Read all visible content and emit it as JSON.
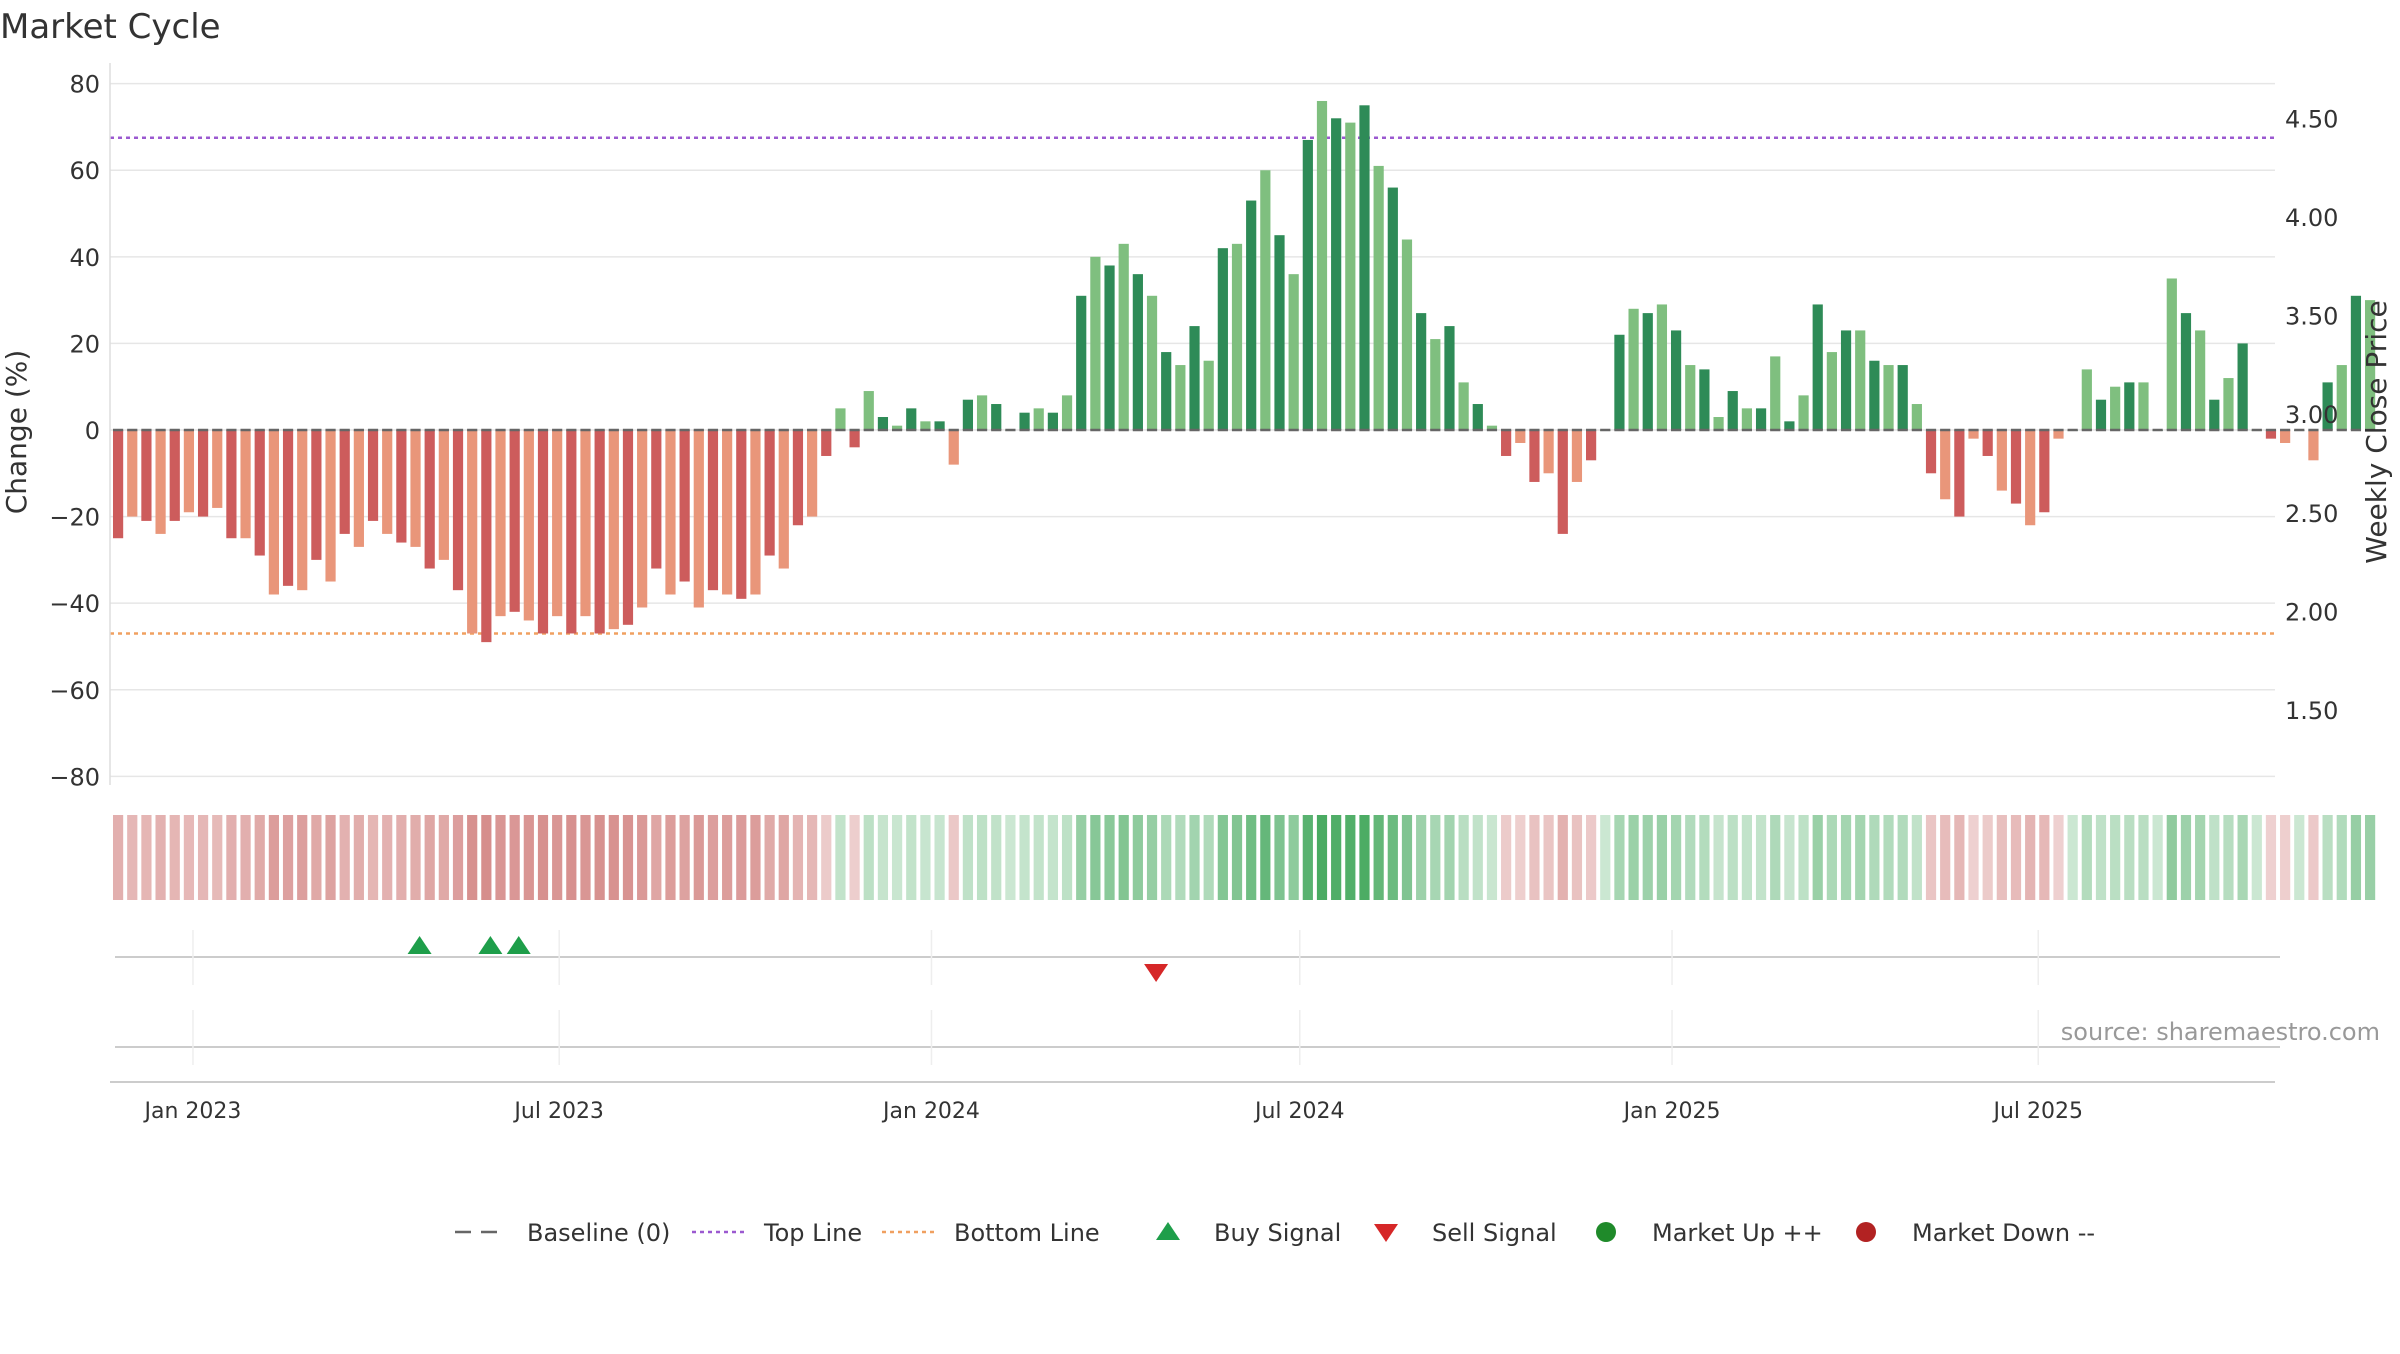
{
  "chart_data": {
    "type": "bar",
    "title": "Market Cycle",
    "ylabel": "Change (%)",
    "y2label": "Weekly Close Price",
    "ylim": [
      -82,
      82
    ],
    "y2lim": [
      1.12,
      4.72
    ],
    "yticks": [
      80,
      60,
      40,
      20,
      0,
      -20,
      -40,
      -60,
      -80
    ],
    "ytick_labels": [
      "80",
      "60",
      "40",
      "20",
      "0",
      "−20",
      "−40",
      "−60",
      "−80"
    ],
    "y2ticks": [
      4.5,
      4.0,
      3.5,
      3.0,
      2.5,
      2.0,
      1.5
    ],
    "y2tick_labels": [
      "4.50",
      "4.00",
      "3.50",
      "3.00",
      "2.50",
      "2.00",
      "1.50"
    ],
    "xticks": [
      {
        "label": "Jan 2023",
        "date": "2023-01-01"
      },
      {
        "label": "Jul 2023",
        "date": "2023-07-01"
      },
      {
        "label": "Jan 2024",
        "date": "2024-01-01"
      },
      {
        "label": "Jul 2024",
        "date": "2024-07-01"
      },
      {
        "label": "Jan 2025",
        "date": "2025-01-01"
      },
      {
        "label": "Jul 2025",
        "date": "2025-07-01"
      }
    ],
    "xrange": [
      "2022-11-21",
      "2025-10-26"
    ],
    "first_week": "2022-11-25",
    "top_line": 67.5,
    "bottom_line": -47,
    "baseline": 0,
    "values": [
      -25,
      -20,
      -21,
      -24,
      -21,
      -19,
      -20,
      -18,
      -25,
      -25,
      -29,
      -38,
      -36,
      -37,
      -30,
      -35,
      -24,
      -27,
      -21,
      -24,
      -26,
      -27,
      -32,
      -30,
      -37,
      -47,
      -49,
      -43,
      -42,
      -44,
      -47,
      -43,
      -47,
      -43,
      -47,
      -46,
      -45,
      -41,
      -32,
      -38,
      -35,
      -41,
      -37,
      -38,
      -39,
      -38,
      -29,
      -32,
      -22,
      -20,
      -6,
      5,
      -4,
      9,
      3,
      1,
      5,
      2,
      2,
      -8,
      7,
      8,
      6,
      0,
      4,
      5,
      4,
      8,
      31,
      40,
      38,
      43,
      36,
      31,
      18,
      15,
      24,
      16,
      42,
      43,
      53,
      60,
      45,
      36,
      67,
      76,
      72,
      71,
      75,
      61,
      56,
      44,
      27,
      21,
      24,
      11,
      6,
      1,
      -6,
      -3,
      -12,
      -10,
      -24,
      -12,
      -7,
      0,
      22,
      28,
      27,
      29,
      23,
      15,
      14,
      3,
      9,
      5,
      5,
      17,
      2,
      8,
      29,
      18,
      23,
      23,
      16,
      15,
      15,
      6,
      -10,
      -16,
      -20,
      -2,
      -6,
      -14,
      -17,
      -22,
      -19,
      -2,
      0,
      14,
      7,
      10,
      11,
      11,
      0,
      35,
      27,
      23,
      7,
      12,
      20,
      0,
      -2,
      -3,
      0,
      -7,
      11,
      15,
      31,
      30
    ],
    "buy_signals": [
      "2023-04-23",
      "2023-05-28",
      "2023-06-11"
    ],
    "sell_signals": [
      "2024-04-21"
    ],
    "annotation": "source: sharemaestro.com",
    "legend": {
      "placement": "bottom",
      "items": [
        {
          "label": "Baseline (0)",
          "symbol": "dash",
          "color": "#666666"
        },
        {
          "label": "Top Line",
          "symbol": "dot",
          "color": "#9b59d0"
        },
        {
          "label": "Bottom Line",
          "symbol": "dot",
          "color": "#f0a060"
        },
        {
          "label": "Buy Signal",
          "symbol": "triangle-up",
          "color": "#1e9e4a"
        },
        {
          "label": "Sell Signal",
          "symbol": "triangle-down",
          "color": "#d62728"
        },
        {
          "label": "Market Up ++",
          "symbol": "circle",
          "color": "#1f8a2a"
        },
        {
          "label": "Market Down --",
          "symbol": "circle",
          "color": "#b22222"
        }
      ]
    },
    "colors": {
      "bar_up_strong": "#2e8b57",
      "bar_up_light": "#7fbf7f",
      "bar_down_strong": "#cd5c5c",
      "bar_down_light": "#e9967a",
      "heat_up": "#2e9e4a",
      "heat_down": "#c0504d",
      "top_line": "#9b59d0",
      "bottom_line": "#f0a060",
      "baseline": "#666666",
      "grid": "#e6e6e6",
      "buy": "#1e9e4a",
      "sell": "#d62728"
    },
    "grid": true
  }
}
